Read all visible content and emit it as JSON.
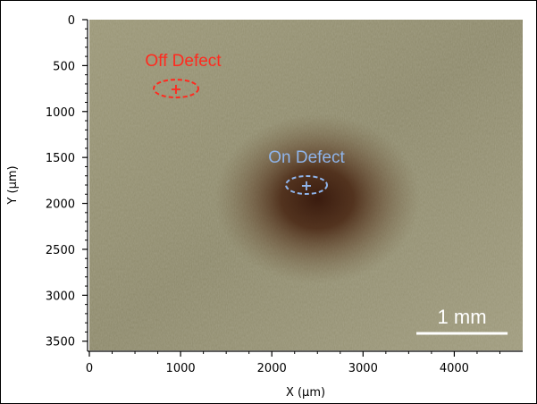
{
  "image": {
    "x_axis": {
      "label": "X (µm)",
      "range": [
        0,
        4750
      ],
      "ticks": [
        0,
        1000,
        2000,
        3000,
        4000
      ],
      "tick_labels": [
        "0",
        "1000",
        "2000",
        "3000",
        "4000"
      ]
    },
    "y_axis": {
      "label": "Y (µm)",
      "range": [
        0,
        3600
      ],
      "ticks": [
        0,
        500,
        1000,
        1500,
        2000,
        2500,
        3000,
        3500
      ],
      "tick_labels": [
        "0",
        "500",
        "1000",
        "1500",
        "2000",
        "2500",
        "3000",
        "3500"
      ],
      "direction": "down"
    },
    "background_color": "#8f8b6c",
    "defect_color": "#3a1a10"
  },
  "annotations": {
    "off_defect": {
      "label": "Off Defect",
      "x": 950,
      "y": 750,
      "color": "#ff2a1f"
    },
    "on_defect": {
      "label": "On Defect",
      "x": 2380,
      "y": 1800,
      "color": "#8fb4ea"
    }
  },
  "scale_bar": {
    "label": "1 mm",
    "length_um": 1000,
    "color": "#ffffff"
  }
}
